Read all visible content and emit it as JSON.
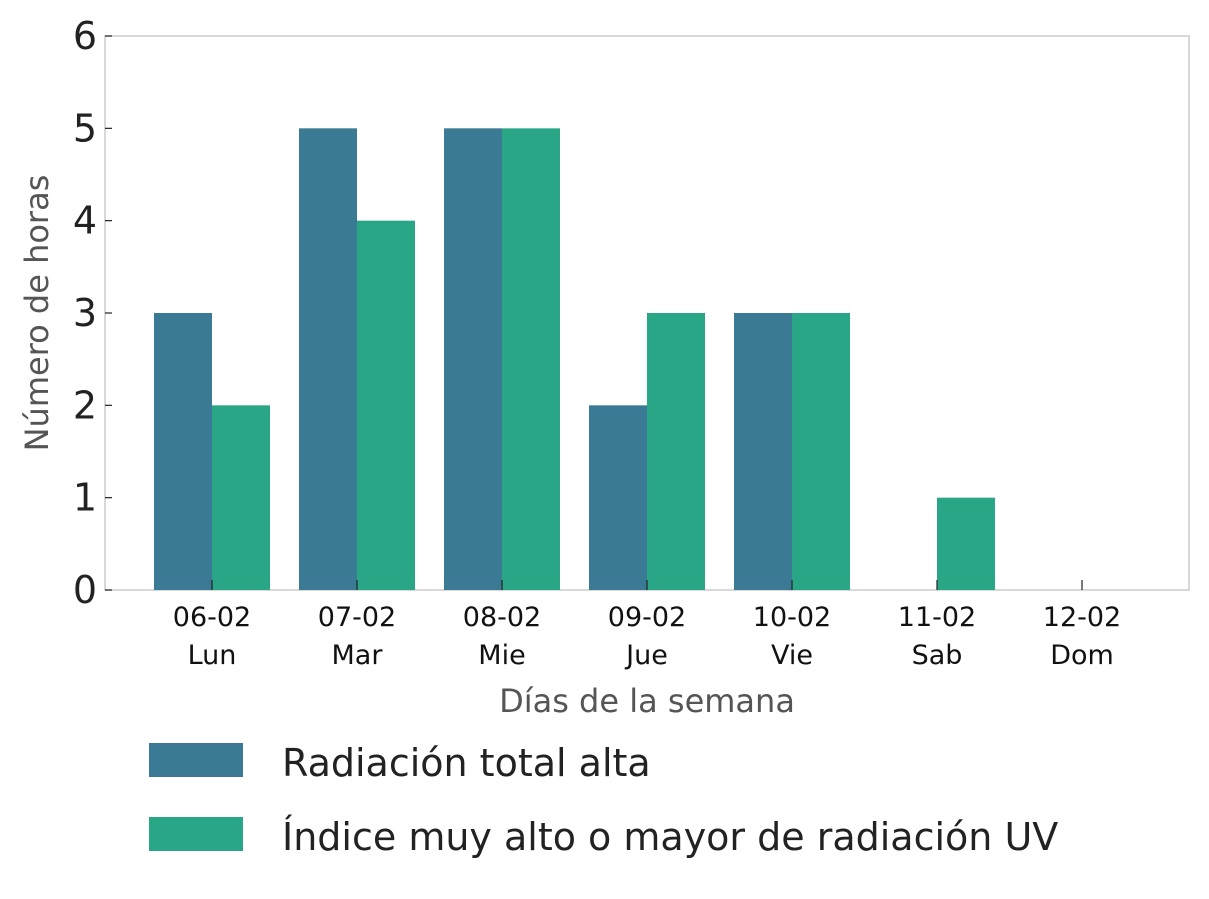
{
  "chart_data": {
    "type": "bar",
    "categories": [
      {
        "date": "06-02",
        "day": "Lun"
      },
      {
        "date": "07-02",
        "day": "Mar"
      },
      {
        "date": "08-02",
        "day": "Mie"
      },
      {
        "date": "09-02",
        "day": "Jue"
      },
      {
        "date": "10-02",
        "day": "Vie"
      },
      {
        "date": "11-02",
        "day": "Sab"
      },
      {
        "date": "12-02",
        "day": "Dom"
      }
    ],
    "series": [
      {
        "name": "Radiación total alta",
        "color": "#3a7a94",
        "values": [
          3,
          5,
          5,
          2,
          3,
          0,
          0
        ]
      },
      {
        "name": "Índice muy alto o mayor de radiación UV",
        "color": "#29a685",
        "values": [
          2,
          4,
          5,
          3,
          3,
          1,
          0
        ]
      }
    ],
    "xlabel": "Días de la semana",
    "ylabel": "Número de horas",
    "ylim": [
      0,
      6
    ],
    "yticks": [
      "0",
      "1",
      "2",
      "3",
      "4",
      "5",
      "6"
    ],
    "grid": false,
    "legend_position": "bottom"
  }
}
